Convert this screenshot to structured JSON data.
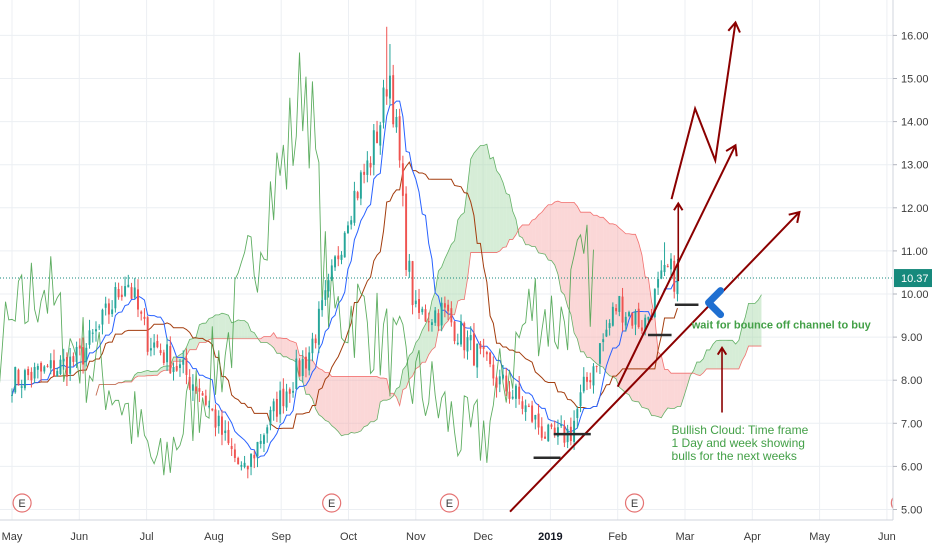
{
  "chart_data": {
    "type": "candlestick",
    "x_ticks": [
      "May",
      "Jun",
      "Jul",
      "Aug",
      "Sep",
      "Oct",
      "Nov",
      "Dec",
      "2019",
      "Feb",
      "Mar",
      "Apr",
      "May",
      "Jun"
    ],
    "y_ticks": [
      "16.00",
      "15.00",
      "14.00",
      "13.00",
      "12.00",
      "11.00",
      "10.00",
      "9.00",
      "8.00",
      "7.00",
      "6.00",
      "5.00"
    ],
    "ylim": [
      4.7,
      16.9
    ],
    "last_price": 10.37,
    "last_price_label": "10.37",
    "earnings_marker_label": "E",
    "earnings_month_positions": [
      0.15,
      4.75,
      6.5,
      9.25,
      13.2
    ],
    "ohlc_anchors": [
      {
        "m": 0.0,
        "p": 8.0
      },
      {
        "m": 0.5,
        "p": 8.2
      },
      {
        "m": 1.0,
        "p": 8.5
      },
      {
        "m": 1.3,
        "p": 9.2
      },
      {
        "m": 1.7,
        "p": 10.4
      },
      {
        "m": 2.0,
        "p": 9.0
      },
      {
        "m": 2.4,
        "p": 8.4
      },
      {
        "m": 2.8,
        "p": 7.8
      },
      {
        "m": 3.2,
        "p": 6.5
      },
      {
        "m": 3.45,
        "p": 5.8
      },
      {
        "m": 3.7,
        "p": 6.7
      },
      {
        "m": 4.0,
        "p": 7.6
      },
      {
        "m": 4.4,
        "p": 8.6
      },
      {
        "m": 4.7,
        "p": 10.0
      },
      {
        "m": 5.0,
        "p": 12.0
      },
      {
        "m": 5.3,
        "p": 13.0
      },
      {
        "m": 5.5,
        "p": 14.2
      },
      {
        "m": 5.6,
        "p": 15.3
      },
      {
        "m": 5.75,
        "p": 13.2
      },
      {
        "m": 5.85,
        "p": 11.0
      },
      {
        "m": 6.0,
        "p": 9.5
      },
      {
        "m": 6.4,
        "p": 9.6
      },
      {
        "m": 6.8,
        "p": 8.8
      },
      {
        "m": 7.2,
        "p": 8.0
      },
      {
        "m": 7.5,
        "p": 7.6
      },
      {
        "m": 7.8,
        "p": 7.0
      },
      {
        "m": 8.0,
        "p": 6.6
      },
      {
        "m": 8.3,
        "p": 6.8
      },
      {
        "m": 8.5,
        "p": 7.8
      },
      {
        "m": 8.8,
        "p": 9.0
      },
      {
        "m": 9.0,
        "p": 9.8
      },
      {
        "m": 9.2,
        "p": 9.5
      },
      {
        "m": 9.4,
        "p": 9.3
      },
      {
        "m": 9.6,
        "p": 10.1
      },
      {
        "m": 9.75,
        "p": 10.5
      },
      {
        "m": 9.9,
        "p": 10.37
      }
    ],
    "spikes": [
      {
        "m": 5.55,
        "high": 16.2
      },
      {
        "m": 5.6,
        "high": 15.8
      },
      {
        "m": 9.7,
        "high": 11.2
      }
    ],
    "colors": {
      "up": "#26a69a",
      "down": "#ef5350",
      "tenkan": "#2962ff",
      "kijun": "#a33d0e",
      "chikou": "#43a047",
      "cloud_bull": "#a5d6a7",
      "cloud_bear": "#f7a6a6",
      "price_line": "#16897c",
      "drawing": "#8b0000",
      "blue_arrow": "#1f6fd1",
      "annotation_green": "#43a047"
    },
    "channel_lines": [
      {
        "from": {
          "m": 9.0,
          "p": 7.85
        },
        "to": {
          "m": 10.75,
          "p": 13.45
        }
      },
      {
        "from": {
          "m": 7.4,
          "p": 4.95
        },
        "to": {
          "m": 11.7,
          "p": 11.9
        }
      }
    ],
    "projection_path": [
      {
        "m": 9.8,
        "p": 12.2
      },
      {
        "m": 10.15,
        "p": 14.3
      },
      {
        "m": 10.45,
        "p": 13.1
      },
      {
        "m": 10.75,
        "p": 16.3
      }
    ],
    "arrow_up_1": {
      "from": {
        "m": 9.9,
        "p": 10.3
      },
      "to": {
        "m": 9.9,
        "p": 12.1
      }
    },
    "arrow_up_2": {
      "from": {
        "m": 10.55,
        "p": 7.25
      },
      "to": {
        "m": 10.55,
        "p": 8.75
      }
    },
    "support_marks": [
      {
        "m1": 8.05,
        "m2": 8.6,
        "p": 6.75
      },
      {
        "m1": 7.75,
        "m2": 8.15,
        "p": 6.2
      },
      {
        "m1": 9.45,
        "m2": 9.8,
        "p": 9.05
      },
      {
        "m1": 9.85,
        "m2": 10.2,
        "p": 9.75
      }
    ],
    "annotations": {
      "bounce_text": "wait for bounce off channel to buy",
      "cloud_text_lines": [
        "Bullish Cloud: Time frame",
        "1 Day and week showing",
        "bulls for the next weeks"
      ]
    }
  }
}
